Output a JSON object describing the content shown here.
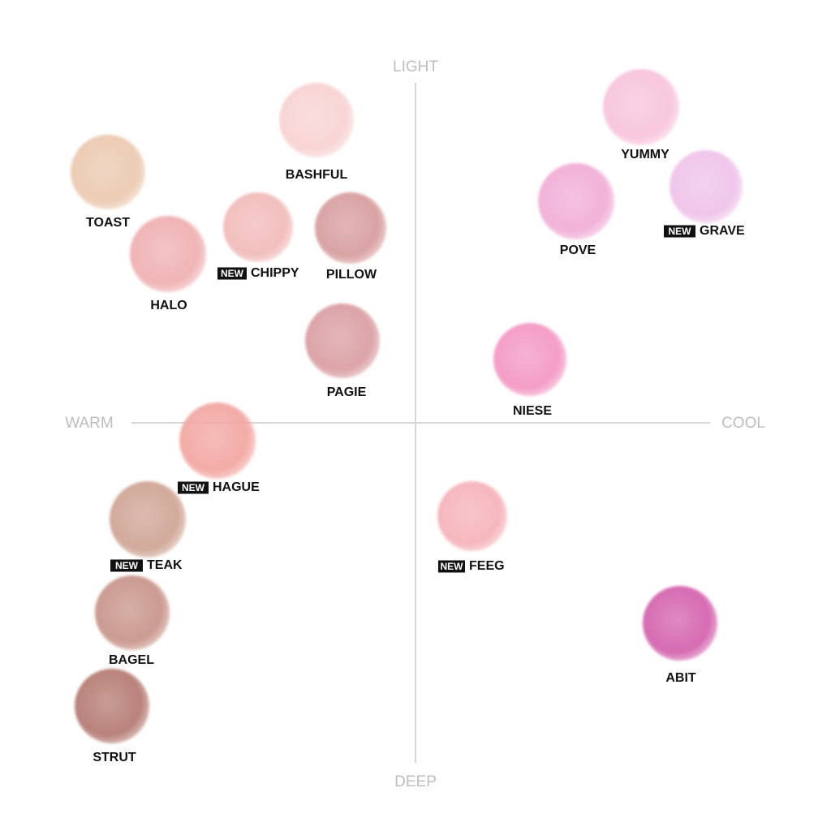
{
  "axes": {
    "top": "LIGHT",
    "bottom": "DEEP",
    "left": "WARM",
    "right": "COOL"
  },
  "swatches": [
    {
      "name": "BASHFUL"
    },
    {
      "name": "TOAST"
    },
    {
      "name": "HALO"
    },
    {
      "name": "CHIPPY",
      "badge": "NEW"
    },
    {
      "name": "PILLOW"
    },
    {
      "name": "PAGIE"
    },
    {
      "name": "HAGUE",
      "badge": "NEW"
    },
    {
      "name": "TEAK",
      "badge": "NEW"
    },
    {
      "name": "BAGEL"
    },
    {
      "name": "STRUT"
    },
    {
      "name": "YUMMY"
    },
    {
      "name": "GRAVE",
      "badge": "NEW"
    },
    {
      "name": "POVE"
    },
    {
      "name": "NIESE"
    },
    {
      "name": "FEEG",
      "badge": "NEW"
    },
    {
      "name": "ABIT"
    }
  ]
}
